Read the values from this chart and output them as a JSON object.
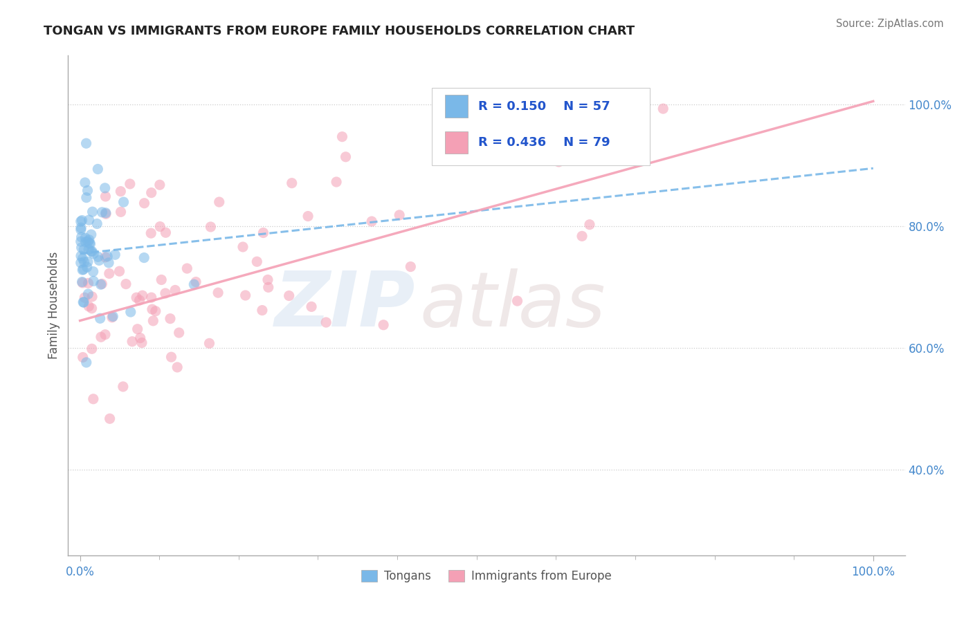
{
  "title": "TONGAN VS IMMIGRANTS FROM EUROPE FAMILY HOUSEHOLDS CORRELATION CHART",
  "source_text": "Source: ZipAtlas.com",
  "ylabel": "Family Households",
  "right_ytick_labels": [
    "40.0%",
    "60.0%",
    "80.0%",
    "100.0%"
  ],
  "right_ytick_values": [
    0.4,
    0.6,
    0.8,
    1.0
  ],
  "xticklabels": [
    "0.0%",
    "100.0%"
  ],
  "xtick_values": [
    0.0,
    1.0
  ],
  "ylim": [
    0.26,
    1.08
  ],
  "xlim": [
    -0.015,
    1.04
  ],
  "blue_color": "#7ab8e8",
  "pink_color": "#f4a0b5",
  "blue_R": 0.15,
  "blue_N": 57,
  "pink_R": 0.436,
  "pink_N": 79,
  "legend_label_blue": "Tongans",
  "legend_label_pink": "Immigrants from Europe",
  "watermark_zip": "ZIP",
  "watermark_atlas": "atlas",
  "background_color": "#ffffff",
  "blue_trend_x0": 0.0,
  "blue_trend_y0": 0.755,
  "blue_trend_x1": 1.0,
  "blue_trend_y1": 0.895,
  "pink_trend_x0": 0.0,
  "pink_trend_y0": 0.645,
  "pink_trend_x1": 1.0,
  "pink_trend_y1": 1.005
}
